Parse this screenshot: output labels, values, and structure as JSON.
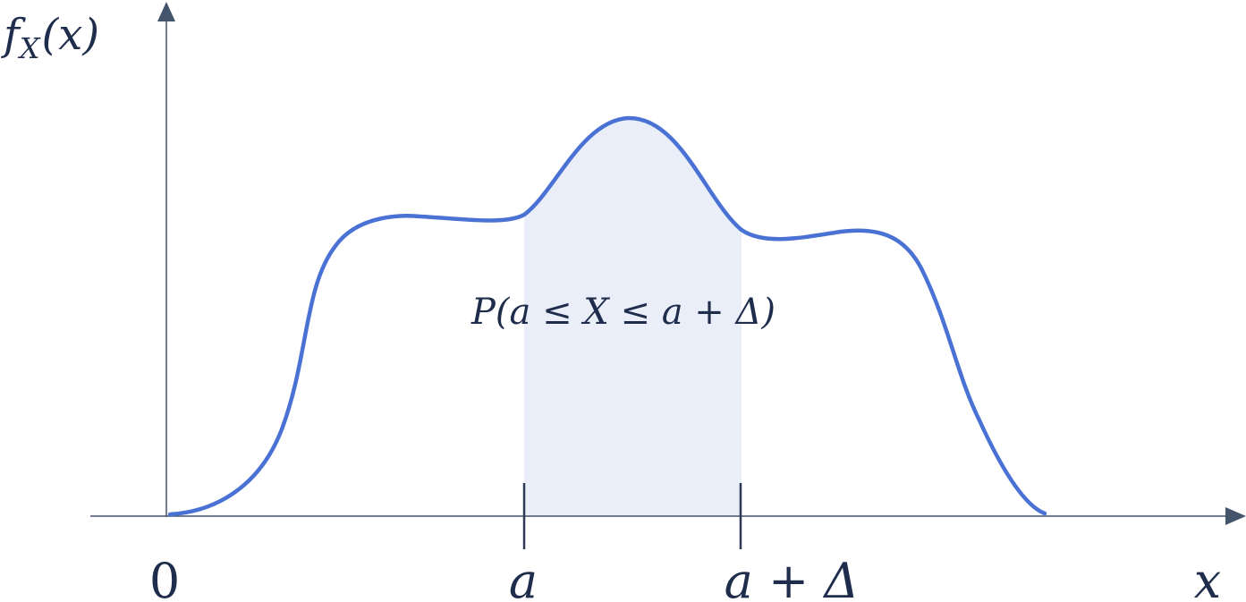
{
  "diagram": {
    "y_axis_label": {
      "f": "f",
      "sub": "X",
      "arg": "(x)"
    },
    "x_axis_label": "x",
    "tick_labels": {
      "origin": "0",
      "a": "a",
      "a_plus_delta": "a + Δ"
    },
    "region_label": "P(a ≤ X ≤ a + Δ)",
    "colors": {
      "axis": "#44546a",
      "curve": "#4a72d4",
      "shaded_region": "#e9eef9",
      "text": "#1f2d4d"
    }
  }
}
